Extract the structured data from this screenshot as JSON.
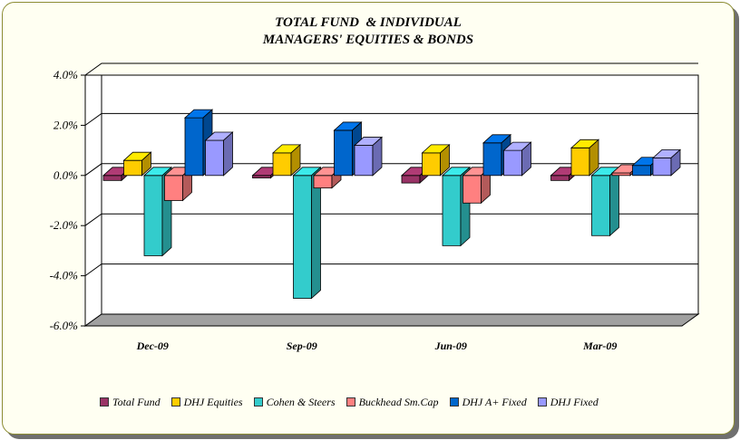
{
  "chart_data": {
    "type": "bar",
    "title_lines": [
      "TOTAL FUND  & INDIVIDUAL",
      "MANAGERS' EQUITIES & BONDS"
    ],
    "categories": [
      "Dec-09",
      "Sep-09",
      "Jun-09",
      "Mar-09"
    ],
    "ylim": [
      -6.0,
      4.0
    ],
    "yticks": [
      4.0,
      2.0,
      0.0,
      -2.0,
      -4.0,
      -6.0
    ],
    "ytick_labels": [
      "4.0%",
      "2.0%",
      "0.0%",
      "-2.0%",
      "-4.0%",
      "-6.0%"
    ],
    "grid": true,
    "legend_position": "bottom",
    "series": [
      {
        "name": "Total Fund",
        "color": "#993366",
        "values": [
          -0.2,
          -0.1,
          -0.3,
          -0.2
        ]
      },
      {
        "name": "DHJ Equities",
        "color": "#ffcc00",
        "values": [
          0.6,
          0.9,
          0.9,
          1.1
        ]
      },
      {
        "name": "Cohen & Steers",
        "color": "#33cccc",
        "values": [
          -3.2,
          -4.9,
          -2.8,
          -2.4
        ]
      },
      {
        "name": "Buckhead Sm.Cap",
        "color": "#ff8080",
        "values": [
          -1.0,
          -0.5,
          -1.1,
          0.1
        ]
      },
      {
        "name": "DHJ A+ Fixed",
        "color": "#0066cc",
        "values": [
          2.3,
          1.8,
          1.3,
          0.4
        ]
      },
      {
        "name": "DHJ Fixed",
        "color": "#9999ff",
        "values": [
          1.4,
          1.2,
          1.0,
          0.7
        ]
      }
    ]
  }
}
